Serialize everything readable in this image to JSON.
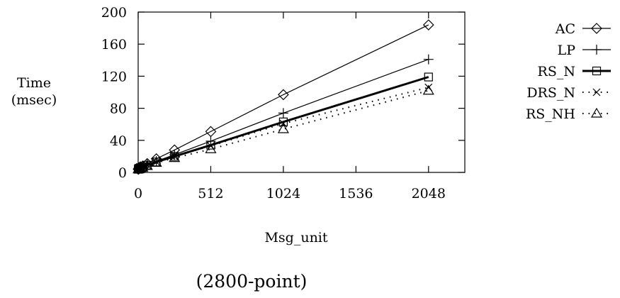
{
  "chart_data": {
    "type": "line",
    "title": "",
    "caption": "(2800-point)",
    "xlabel": "Msg_unit",
    "ylabel_lines": [
      "Time",
      "(msec)"
    ],
    "xlim": [
      0,
      2304
    ],
    "ylim": [
      0,
      200
    ],
    "xticks": [
      0,
      512,
      1024,
      1536,
      2048
    ],
    "yticks": [
      0,
      40,
      80,
      120,
      160,
      200
    ],
    "x": [
      1,
      2,
      4,
      8,
      16,
      32,
      64,
      128,
      256,
      512,
      1024,
      2048
    ],
    "grid": false,
    "legend_position": "right",
    "series": [
      {
        "name": "AC",
        "marker": "diamond",
        "line": "solid",
        "weight": "thin",
        "values": [
          4,
          4,
          5,
          6,
          7,
          8,
          11,
          17,
          28,
          51,
          97,
          184
        ]
      },
      {
        "name": "LP",
        "marker": "plus",
        "line": "solid",
        "weight": "thin",
        "values": [
          4,
          4,
          5,
          5,
          6,
          7,
          10,
          14,
          22,
          39,
          74,
          141
        ]
      },
      {
        "name": "RS_N",
        "marker": "square",
        "line": "solid",
        "weight": "thick",
        "values": [
          4,
          4,
          5,
          5,
          6,
          7,
          9,
          13,
          20,
          34,
          63,
          119
        ]
      },
      {
        "name": "DRS_N",
        "marker": "cross",
        "line": "dotted",
        "weight": "thin",
        "values": [
          4,
          4,
          5,
          5,
          6,
          7,
          9,
          13,
          20,
          33,
          61,
          106
        ]
      },
      {
        "name": "RS_NH",
        "marker": "triangle",
        "line": "dotted",
        "weight": "thin",
        "values": [
          4,
          4,
          4,
          5,
          5,
          6,
          8,
          12,
          18,
          29,
          54,
          102
        ]
      }
    ]
  }
}
